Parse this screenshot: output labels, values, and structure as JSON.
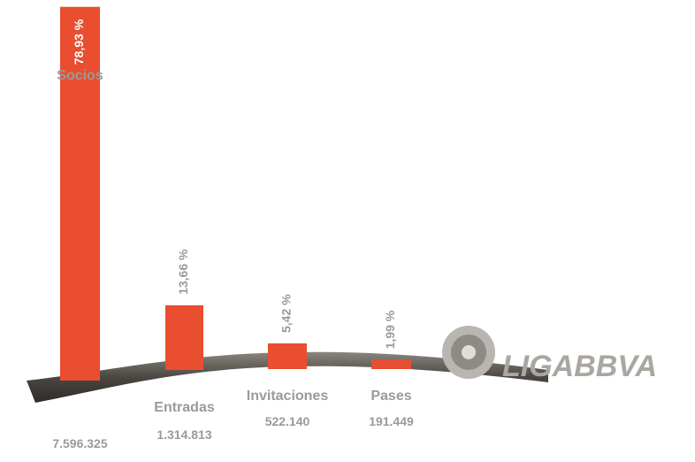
{
  "chart_data": {
    "type": "bar",
    "categories": [
      "Socios",
      "Entradas",
      "Invitaciones",
      "Pases"
    ],
    "category_counts": [
      "7.596.325",
      "1.314.813",
      "522.140",
      "191.449"
    ],
    "values": [
      78.93,
      13.66,
      5.42,
      1.99
    ],
    "value_labels": [
      "78,93 %",
      "13,66 %",
      "5,42 %",
      "1,99 %"
    ],
    "color": "#e84e2f"
  },
  "logo": "LIGABBVA"
}
